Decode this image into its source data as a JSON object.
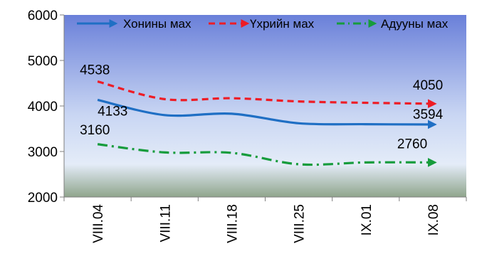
{
  "chart_data": {
    "type": "line",
    "categories": [
      "VIII.04",
      "VIII.11",
      "VIII.18",
      "VIII.25",
      "IX.01",
      "IX.08"
    ],
    "ylim": [
      2000,
      6000
    ],
    "yticks": [
      2000,
      3000,
      4000,
      5000,
      6000
    ],
    "grid": false,
    "legend_position": "top",
    "series": [
      {
        "name": "Хонины мах",
        "color": "#1f6fc4",
        "dash": "solid",
        "values": [
          4133,
          3800,
          3830,
          3620,
          3600,
          3594
        ],
        "labels": [
          {
            "index": 0,
            "text": "4133"
          },
          {
            "index": 5,
            "text": "3594"
          }
        ]
      },
      {
        "name": "Үхрийн мах",
        "color": "#ee1c25",
        "dash": "dash",
        "values": [
          4538,
          4150,
          4170,
          4100,
          4070,
          4050
        ],
        "labels": [
          {
            "index": 0,
            "text": "4538"
          },
          {
            "index": 5,
            "text": "4050"
          }
        ]
      },
      {
        "name": "Адууны мах",
        "color": "#169c3c",
        "dash": "dashdot",
        "values": [
          3160,
          2980,
          2970,
          2720,
          2760,
          2760
        ],
        "labels": [
          {
            "index": 0,
            "text": "3160"
          },
          {
            "index": 5,
            "text": "2760"
          }
        ]
      }
    ]
  }
}
